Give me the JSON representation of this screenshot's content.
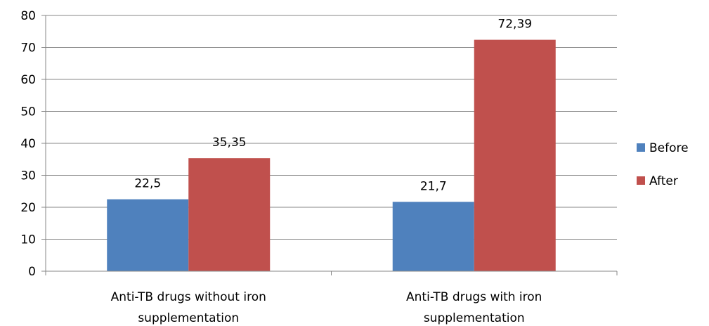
{
  "chart_data": {
    "type": "bar",
    "categories": [
      [
        "Anti-TB drugs without iron",
        "supplementation"
      ],
      [
        "Anti-TB drugs with iron",
        "supplementation"
      ]
    ],
    "series": [
      {
        "name": "Before",
        "color": "#4F81BD",
        "values": [
          22.5,
          21.7
        ],
        "labels": [
          "22,5",
          "21,7"
        ]
      },
      {
        "name": "After",
        "color": "#C0504D",
        "values": [
          35.35,
          72.39
        ],
        "labels": [
          "35,35",
          "72,39"
        ]
      }
    ],
    "yticks": [
      "0",
      "10",
      "20",
      "30",
      "40",
      "50",
      "60",
      "70",
      "80"
    ],
    "ylim": [
      0,
      80
    ],
    "grid": true,
    "legend_position": "right"
  }
}
